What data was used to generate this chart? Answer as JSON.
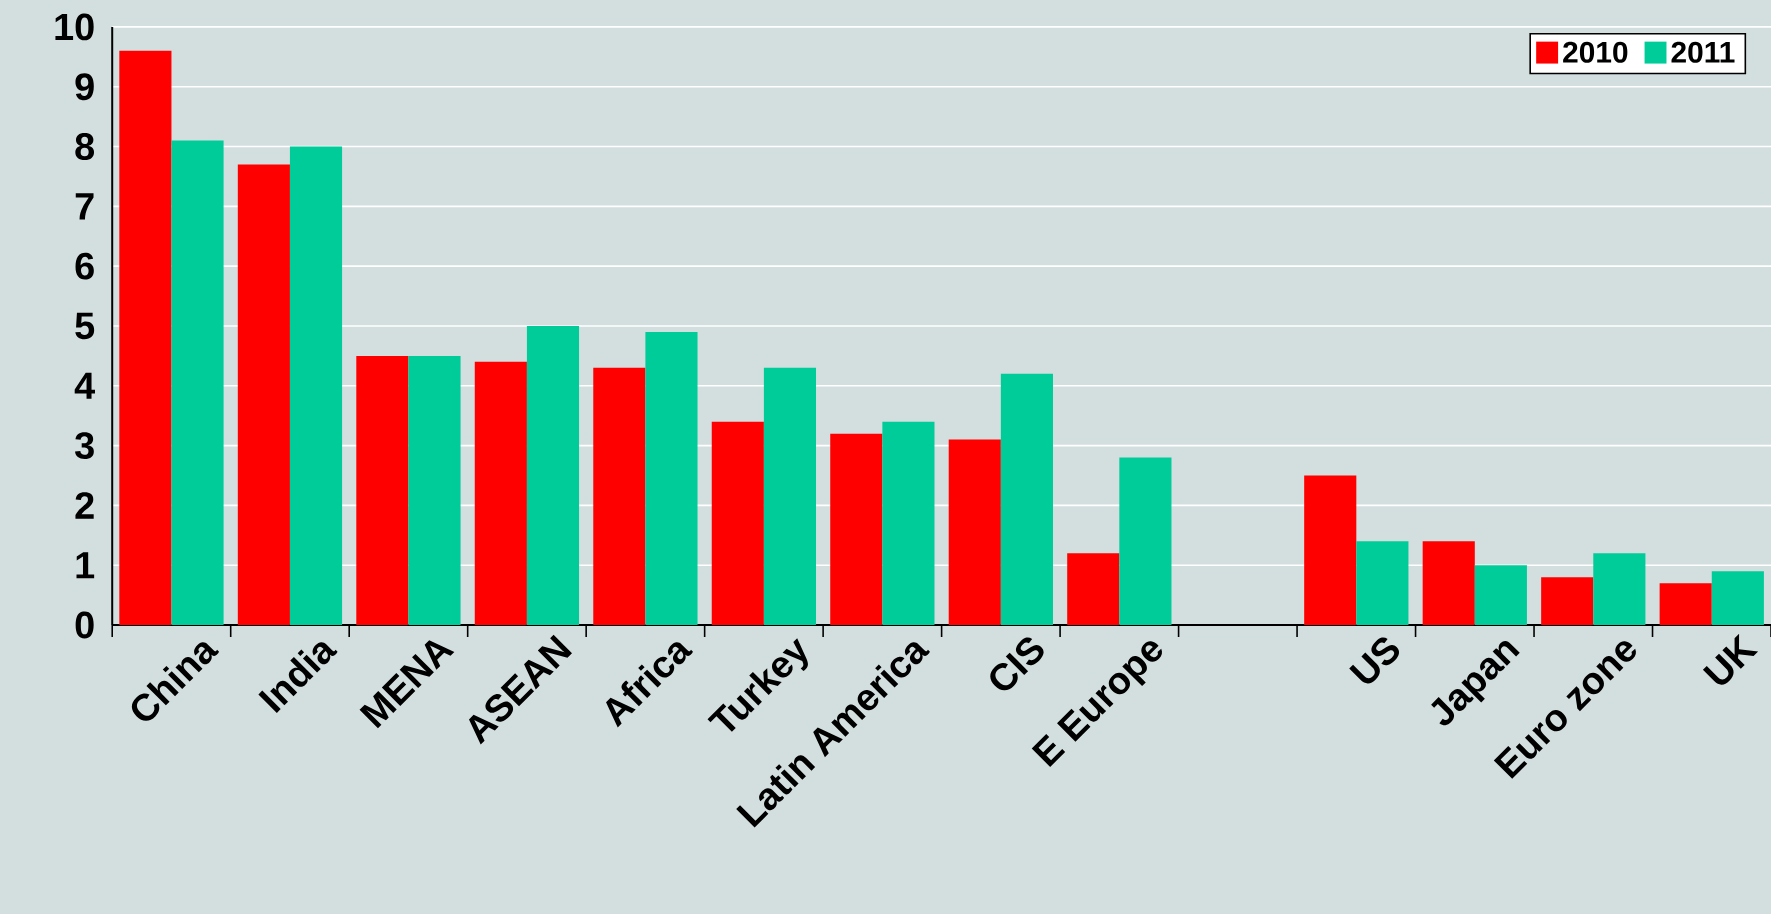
{
  "chart_data": {
    "type": "bar",
    "categories": [
      "China",
      "India",
      "MENA",
      "ASEAN",
      "Africa",
      "Turkey",
      "Latin America",
      "CIS",
      "E Europe",
      null,
      "US",
      "Japan",
      "Euro zone",
      "UK"
    ],
    "series": [
      {
        "name": "2010",
        "color": "#ff0000",
        "values": [
          9.6,
          7.7,
          4.5,
          4.4,
          4.3,
          3.4,
          3.2,
          3.1,
          1.2,
          null,
          2.5,
          1.4,
          0.8,
          0.7
        ]
      },
      {
        "name": "2011",
        "color": "#00cc99",
        "values": [
          8.1,
          8.0,
          4.5,
          5.0,
          4.9,
          4.3,
          3.4,
          4.2,
          2.8,
          null,
          1.4,
          1.0,
          1.2,
          0.9
        ]
      }
    ],
    "ylim": [
      0,
      10
    ],
    "yticks": [
      0,
      1,
      2,
      3,
      4,
      5,
      6,
      7,
      8,
      9,
      10
    ],
    "grid": "y",
    "legend": "top right"
  }
}
